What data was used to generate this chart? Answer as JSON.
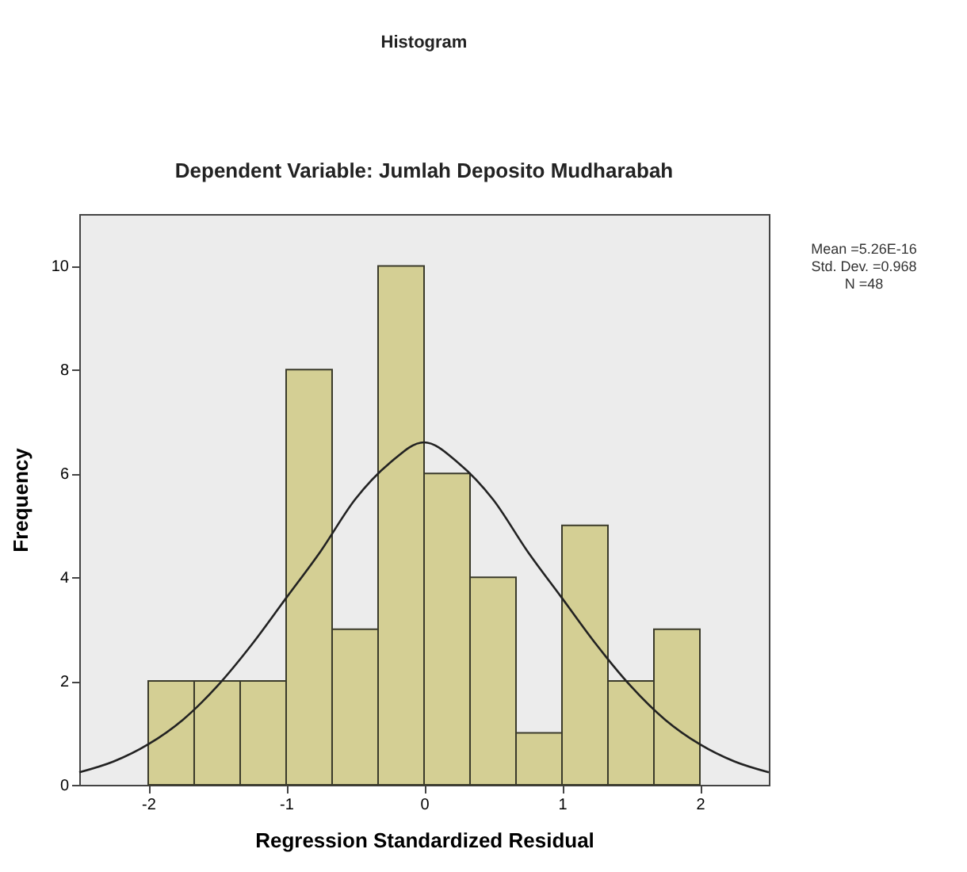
{
  "chart_data": {
    "type": "histogram",
    "title": "Histogram",
    "subtitle": "Dependent Variable: Jumlah Deposito Mudharabah",
    "xlabel": "Regression Standardized Residual",
    "ylabel": "Frequency",
    "annotations": [
      "Mean =5.26E-16",
      "Std. Dev. =0.968",
      "N =48"
    ],
    "bins": [
      -2,
      -1.6667,
      -1.3333,
      -1,
      -0.6667,
      -0.3333,
      0,
      0.3333,
      0.6667,
      1,
      1.3333,
      1.6667,
      2
    ],
    "series": [
      {
        "color": "#d4cf94",
        "values": [
          2,
          2,
          2,
          8,
          3,
          10,
          6,
          4,
          1,
          5,
          2,
          3
        ]
      },
      {
        "type": "line",
        "color": "#222222",
        "x": [
          -2.5,
          -2.25,
          -2,
          -1.75,
          -1.5,
          -1.25,
          -1,
          -0.75,
          -0.5,
          -0.25,
          0,
          0.25,
          0.5,
          0.75,
          1,
          1.25,
          1.5,
          1.75,
          2,
          2.25,
          2.5
        ],
        "values": [
          0.24,
          0.45,
          0.78,
          1.25,
          1.9,
          2.7,
          3.6,
          4.5,
          5.5,
          6.2,
          6.6,
          6.2,
          5.5,
          4.5,
          3.6,
          2.7,
          1.9,
          1.25,
          0.78,
          0.45,
          0.24
        ]
      }
    ],
    "xlim": [
      -2.5,
      2.5
    ],
    "ylim": [
      0,
      11
    ],
    "xticks": [
      -2,
      -1,
      0,
      1,
      2
    ],
    "yticks": [
      0,
      2,
      4,
      6,
      8,
      10
    ],
    "grid": false
  }
}
